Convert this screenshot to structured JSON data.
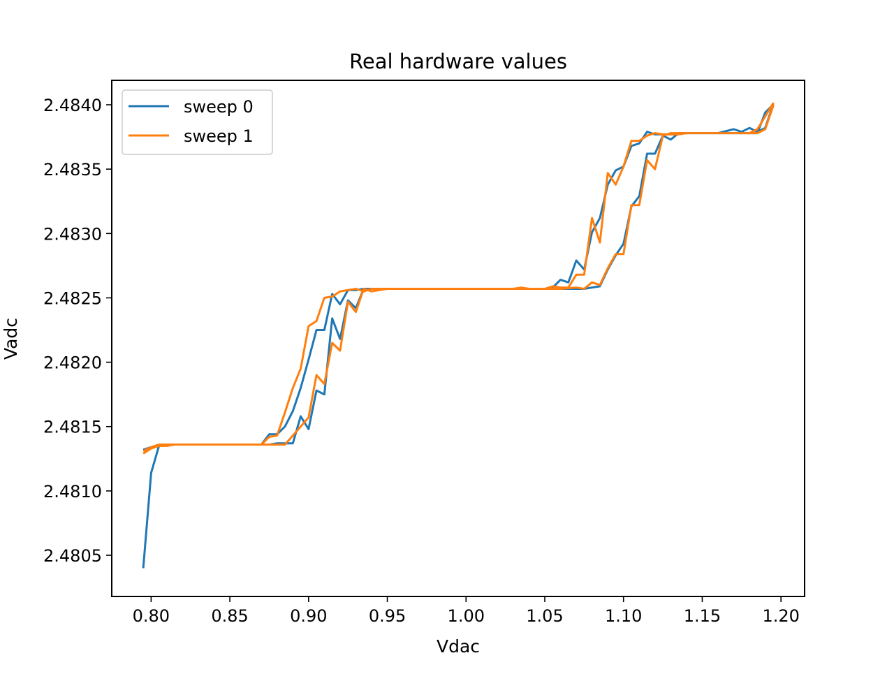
{
  "chart_data": {
    "type": "line",
    "title": "Real hardware values",
    "xlabel": "Vdac",
    "ylabel": "Vadc",
    "xlim": [
      0.775,
      1.215
    ],
    "ylim": [
      2.48018,
      2.48419
    ],
    "x_ticks": [
      {
        "value": 0.8,
        "label": "0.80"
      },
      {
        "value": 0.85,
        "label": "0.85"
      },
      {
        "value": 0.9,
        "label": "0.90"
      },
      {
        "value": 0.95,
        "label": "0.95"
      },
      {
        "value": 1.0,
        "label": "1.00"
      },
      {
        "value": 1.05,
        "label": "1.05"
      },
      {
        "value": 1.1,
        "label": "1.10"
      },
      {
        "value": 1.15,
        "label": "1.15"
      },
      {
        "value": 1.2,
        "label": "1.20"
      }
    ],
    "y_ticks": [
      {
        "value": 2.4805,
        "label": "2.4805"
      },
      {
        "value": 2.481,
        "label": "2.4810"
      },
      {
        "value": 2.4815,
        "label": "2.4815"
      },
      {
        "value": 2.482,
        "label": "2.4820"
      },
      {
        "value": 2.4825,
        "label": "2.4825"
      },
      {
        "value": 2.483,
        "label": "2.4830"
      },
      {
        "value": 2.4835,
        "label": "2.4835"
      },
      {
        "value": 2.484,
        "label": "2.4840"
      }
    ],
    "grid": false,
    "legend_position": "upper left",
    "series": [
      {
        "name": "sweep 0",
        "color": "#1f77b4",
        "x": [
          0.795,
          0.8,
          0.805,
          0.81,
          0.815,
          0.82,
          0.83,
          0.84,
          0.85,
          0.86,
          0.87,
          0.875,
          0.88,
          0.885,
          0.89,
          0.895,
          0.9,
          0.905,
          0.91,
          0.915,
          0.92,
          0.925,
          0.93,
          0.935,
          0.94,
          0.95,
          1.0,
          1.05,
          1.06,
          1.07,
          1.075,
          1.08,
          1.085,
          1.09,
          1.095,
          1.1,
          1.105,
          1.11,
          1.115,
          1.12,
          1.125,
          1.13,
          1.135,
          1.14,
          1.15,
          1.16,
          1.17,
          1.175,
          1.18,
          1.185,
          1.19,
          1.195,
          1.195,
          1.19,
          1.185,
          1.18,
          1.175,
          1.17,
          1.16,
          1.15,
          1.14,
          1.135,
          1.13,
          1.125,
          1.12,
          1.115,
          1.11,
          1.105,
          1.1,
          1.095,
          1.09,
          1.085,
          1.08,
          1.075,
          1.07,
          1.065,
          1.06,
          1.055,
          1.05,
          1.0,
          0.95,
          0.94,
          0.935,
          0.93,
          0.925,
          0.92,
          0.915,
          0.91,
          0.905,
          0.9,
          0.895,
          0.89,
          0.885,
          0.88,
          0.875,
          0.87,
          0.86,
          0.85,
          0.84,
          0.83,
          0.82,
          0.815,
          0.81,
          0.805,
          0.8,
          0.795
        ],
        "y": [
          2.4804,
          2.48114,
          2.48135,
          2.48136,
          2.48136,
          2.48136,
          2.48136,
          2.48136,
          2.48136,
          2.48136,
          2.48136,
          2.48136,
          2.48137,
          2.48137,
          2.48137,
          2.48158,
          2.48148,
          2.48178,
          2.48175,
          2.48234,
          2.48218,
          2.48248,
          2.48242,
          2.48257,
          2.48257,
          2.48257,
          2.48257,
          2.48257,
          2.48257,
          2.48257,
          2.48257,
          2.48258,
          2.48259,
          2.48272,
          2.48283,
          2.48292,
          2.48321,
          2.48329,
          2.48362,
          2.48362,
          2.48376,
          2.48373,
          2.48378,
          2.48378,
          2.48378,
          2.48378,
          2.48378,
          2.48378,
          2.48378,
          2.48378,
          2.48394,
          2.484,
          2.484,
          2.48382,
          2.48379,
          2.48382,
          2.48379,
          2.48381,
          2.48378,
          2.48378,
          2.48378,
          2.48378,
          2.48377,
          2.48377,
          2.48377,
          2.48379,
          2.4837,
          2.48368,
          2.48352,
          2.48349,
          2.48338,
          2.48312,
          2.48301,
          2.48272,
          2.48279,
          2.48262,
          2.48264,
          2.48258,
          2.48257,
          2.48257,
          2.48257,
          2.48257,
          2.48257,
          2.48256,
          2.48256,
          2.48245,
          2.48253,
          2.48225,
          2.48225,
          2.48202,
          2.4818,
          2.48162,
          2.4815,
          2.48144,
          2.48144,
          2.48136,
          2.48136,
          2.48136,
          2.48136,
          2.48136,
          2.48136,
          2.48136,
          2.48136,
          2.48135,
          2.48134,
          2.48132
        ]
      },
      {
        "name": "sweep 1",
        "color": "#ff7f0e",
        "x": [
          0.795,
          0.8,
          0.805,
          0.81,
          0.815,
          0.82,
          0.83,
          0.84,
          0.85,
          0.86,
          0.87,
          0.875,
          0.88,
          0.885,
          0.89,
          0.895,
          0.9,
          0.905,
          0.91,
          0.915,
          0.92,
          0.925,
          0.93,
          0.935,
          0.94,
          0.95,
          1.0,
          1.03,
          1.035,
          1.04,
          1.05,
          1.06,
          1.07,
          1.075,
          1.08,
          1.085,
          1.09,
          1.095,
          1.1,
          1.105,
          1.11,
          1.115,
          1.12,
          1.125,
          1.13,
          1.135,
          1.14,
          1.15,
          1.16,
          1.17,
          1.175,
          1.18,
          1.185,
          1.19,
          1.195,
          1.195,
          1.19,
          1.185,
          1.18,
          1.175,
          1.17,
          1.16,
          1.15,
          1.14,
          1.135,
          1.13,
          1.125,
          1.12,
          1.115,
          1.11,
          1.105,
          1.1,
          1.095,
          1.09,
          1.085,
          1.08,
          1.075,
          1.07,
          1.065,
          1.06,
          1.055,
          1.05,
          1.0,
          0.95,
          0.94,
          0.935,
          0.93,
          0.925,
          0.92,
          0.915,
          0.91,
          0.905,
          0.9,
          0.895,
          0.89,
          0.885,
          0.88,
          0.875,
          0.87,
          0.86,
          0.85,
          0.84,
          0.83,
          0.82,
          0.815,
          0.81,
          0.805,
          0.8,
          0.795
        ],
        "y": [
          2.48131,
          2.48134,
          2.48136,
          2.48136,
          2.48136,
          2.48136,
          2.48136,
          2.48136,
          2.48136,
          2.48136,
          2.48136,
          2.48136,
          2.48136,
          2.48136,
          2.48143,
          2.4815,
          2.48157,
          2.4819,
          2.48183,
          2.48215,
          2.48209,
          2.48247,
          2.48239,
          2.48257,
          2.48255,
          2.48257,
          2.48257,
          2.48257,
          2.48258,
          2.48257,
          2.48257,
          2.48257,
          2.48258,
          2.48257,
          2.48262,
          2.4826,
          2.48273,
          2.48284,
          2.48284,
          2.48322,
          2.48322,
          2.48357,
          2.4835,
          2.48376,
          2.48378,
          2.48378,
          2.48378,
          2.48378,
          2.48378,
          2.48378,
          2.48378,
          2.48378,
          2.48378,
          2.48381,
          2.48399,
          2.48401,
          2.48391,
          2.48381,
          2.48378,
          2.48378,
          2.48378,
          2.48378,
          2.48378,
          2.48378,
          2.48377,
          2.48377,
          2.48377,
          2.48378,
          2.48376,
          2.48372,
          2.48372,
          2.48352,
          2.48338,
          2.48347,
          2.48293,
          2.48312,
          2.48268,
          2.48268,
          2.48258,
          2.48258,
          2.48259,
          2.48257,
          2.48257,
          2.48257,
          2.48257,
          2.48255,
          2.48257,
          2.48256,
          2.48255,
          2.48251,
          2.4825,
          2.48232,
          2.48228,
          2.48195,
          2.4818,
          2.48161,
          2.48143,
          2.48142,
          2.48136,
          2.48136,
          2.48136,
          2.48136,
          2.48136,
          2.48136,
          2.48136,
          2.48135,
          2.48135,
          2.48133,
          2.48129
        ]
      }
    ]
  }
}
